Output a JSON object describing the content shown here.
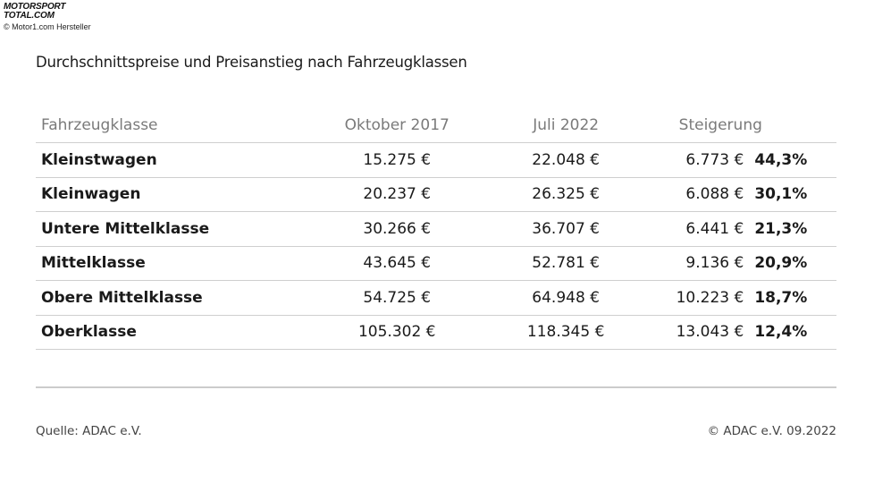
{
  "watermark": {
    "logo_line1": "MOTORSPORT",
    "logo_line2": "TOTAL.COM",
    "credit": "© Motor1.com Hersteller"
  },
  "chart_data": {
    "type": "table",
    "title": "Durchschnittspreise und Preisanstieg nach Fahrzeugklassen",
    "columns": [
      "Fahrzeugklasse",
      "Oktober 2017",
      "Juli 2022",
      "Steigerung"
    ],
    "rows": [
      {
        "klasse": "Kleinstwagen",
        "okt2017": "15.275 €",
        "jul2022": "22.048 €",
        "steigerung_abs": "6.773 €",
        "steigerung_pct": "44,3%"
      },
      {
        "klasse": "Kleinwagen",
        "okt2017": "20.237 €",
        "jul2022": "26.325 €",
        "steigerung_abs": "6.088 €",
        "steigerung_pct": "30,1%"
      },
      {
        "klasse": "Untere Mittelklasse",
        "okt2017": "30.266 €",
        "jul2022": "36.707 €",
        "steigerung_abs": "6.441 €",
        "steigerung_pct": "21,3%"
      },
      {
        "klasse": "Mittelklasse",
        "okt2017": "43.645 €",
        "jul2022": "52.781 €",
        "steigerung_abs": "9.136 €",
        "steigerung_pct": "20,9%"
      },
      {
        "klasse": "Obere Mittelklasse",
        "okt2017": "54.725 €",
        "jul2022": "64.948 €",
        "steigerung_abs": "10.223 €",
        "steigerung_pct": "18,7%"
      },
      {
        "klasse": "Oberklasse",
        "okt2017": "105.302 €",
        "jul2022": "118.345 €",
        "steigerung_abs": "13.043 €",
        "steigerung_pct": "12,4%"
      }
    ],
    "source": "Quelle: ADAC e.V.",
    "copyright": "© ADAC e.V. 09.2022"
  }
}
